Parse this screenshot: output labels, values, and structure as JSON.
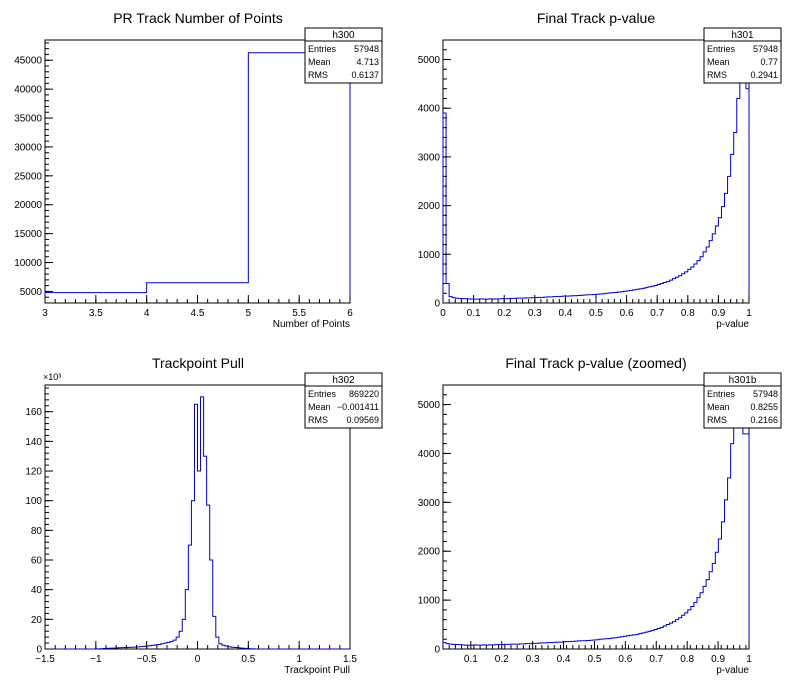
{
  "colors": {
    "line": "#0000cc",
    "axis": "#000000",
    "background": "#ffffff"
  },
  "chart_data": [
    {
      "id": "h300",
      "type": "histogram",
      "title": "PR Track Number of Points",
      "xlabel": "Number of Points",
      "ylabel": "",
      "xlim": [
        3,
        6
      ],
      "ylim": [
        3000,
        48500
      ],
      "exponent_label": "",
      "xticks": [
        "3",
        "3.5",
        "4",
        "4.5",
        "5",
        "5.5",
        "6"
      ],
      "yticks": [
        "5000",
        "10000",
        "15000",
        "20000",
        "25000",
        "30000",
        "35000",
        "40000",
        "45000"
      ],
      "bin_edges": [
        3,
        4,
        5,
        6
      ],
      "values": [
        4800,
        6500,
        46300
      ],
      "stats": {
        "name": "h300",
        "Entries": "57948",
        "Mean": "4.713",
        "RMS": "0.6137"
      }
    },
    {
      "id": "h301",
      "type": "histogram",
      "title": "Final Track p-value",
      "xlabel": "p-value",
      "ylabel": "",
      "xlim": [
        0,
        1
      ],
      "ylim": [
        0,
        5400
      ],
      "exponent_label": "",
      "xticks": [
        "0",
        "0.1",
        "0.2",
        "0.3",
        "0.4",
        "0.5",
        "0.6",
        "0.7",
        "0.8",
        "0.9",
        "1"
      ],
      "yticks": [
        "0",
        "1000",
        "2000",
        "3000",
        "4000",
        "5000"
      ],
      "bins": 100,
      "values": [
        3900,
        400,
        130,
        110,
        100,
        95,
        90,
        90,
        85,
        80,
        80,
        80,
        85,
        80,
        80,
        85,
        80,
        85,
        85,
        90,
        90,
        90,
        95,
        95,
        100,
        100,
        100,
        105,
        105,
        110,
        110,
        115,
        115,
        120,
        125,
        125,
        130,
        130,
        135,
        140,
        140,
        145,
        150,
        150,
        155,
        160,
        165,
        170,
        170,
        175,
        180,
        185,
        190,
        200,
        205,
        210,
        215,
        225,
        230,
        240,
        250,
        260,
        270,
        280,
        290,
        300,
        315,
        330,
        345,
        360,
        380,
        400,
        420,
        440,
        470,
        500,
        530,
        560,
        600,
        640,
        690,
        740,
        800,
        870,
        950,
        1050,
        1150,
        1280,
        1420,
        1580,
        1750,
        1980,
        2250,
        2600,
        3050,
        3500,
        4200,
        5000,
        5200,
        4400
      ],
      "stats": {
        "name": "h301",
        "Entries": "57948",
        "Mean": "0.77",
        "RMS": "0.2941"
      }
    },
    {
      "id": "h302",
      "type": "histogram",
      "title": "Trackpoint Pull",
      "xlabel": "Trackpoint Pull",
      "ylabel": "",
      "xlim": [
        -1.5,
        1.5
      ],
      "ylim": [
        0,
        178000
      ],
      "exponent_label": "×10³",
      "xticks": [
        "−1.5",
        "−1",
        "−0.5",
        "0",
        "0.5",
        "1",
        "1.5"
      ],
      "yticks": [
        "0",
        "20",
        "40",
        "60",
        "80",
        "100",
        "120",
        "140",
        "160"
      ],
      "bins": 100,
      "values": [
        0,
        0,
        0,
        0,
        0,
        0,
        0,
        0,
        0,
        0,
        0,
        0,
        0,
        0,
        0,
        0,
        0,
        100,
        200,
        300,
        400,
        500,
        600,
        700,
        800,
        900,
        1000,
        1100,
        1200,
        1300,
        1400,
        1600,
        1800,
        2000,
        2200,
        2500,
        2800,
        3000,
        3500,
        4000,
        4500,
        5000,
        6000,
        8000,
        12000,
        20000,
        40000,
        70000,
        100000,
        165000,
        120000,
        170000,
        130000,
        97000,
        60000,
        22000,
        8000,
        3500,
        2500,
        2000,
        1500,
        1200,
        1000,
        800,
        600,
        400,
        300,
        200,
        100,
        0,
        0,
        0,
        0,
        0,
        0,
        0,
        0,
        0,
        0,
        0,
        0,
        0,
        0,
        0,
        0,
        0,
        0,
        0,
        0,
        0,
        0,
        0,
        0,
        0,
        0,
        0,
        0,
        0,
        0,
        0
      ],
      "stats": {
        "name": "h302",
        "Entries": "869220",
        "Mean": "−0.001411",
        "RMS": "0.09569"
      }
    },
    {
      "id": "h301b",
      "type": "histogram",
      "title": "Final Track p-value (zoomed)",
      "xlabel": "p-value",
      "ylabel": "",
      "xlim": [
        0.01,
        1
      ],
      "ylim": [
        0,
        5400
      ],
      "exponent_label": "",
      "xticks": [
        "0.1",
        "0.2",
        "0.3",
        "0.4",
        "0.5",
        "0.6",
        "0.7",
        "0.8",
        "0.9",
        "1"
      ],
      "yticks": [
        "0",
        "1000",
        "2000",
        "3000",
        "4000",
        "5000"
      ],
      "bins": 100,
      "values": [
        130,
        110,
        100,
        95,
        90,
        90,
        85,
        80,
        80,
        80,
        85,
        80,
        80,
        85,
        80,
        85,
        85,
        90,
        90,
        90,
        95,
        95,
        100,
        100,
        100,
        105,
        105,
        110,
        110,
        115,
        115,
        120,
        125,
        125,
        130,
        130,
        135,
        140,
        140,
        145,
        150,
        150,
        155,
        160,
        165,
        170,
        170,
        175,
        180,
        185,
        190,
        200,
        205,
        210,
        215,
        225,
        230,
        240,
        250,
        260,
        270,
        280,
        290,
        300,
        315,
        330,
        345,
        360,
        380,
        400,
        420,
        440,
        470,
        500,
        530,
        560,
        600,
        640,
        690,
        740,
        800,
        870,
        950,
        1050,
        1150,
        1280,
        1420,
        1580,
        1750,
        1980,
        2250,
        2600,
        3050,
        3500,
        4200,
        5000,
        5200,
        5200,
        4400,
        4400
      ],
      "stats": {
        "name": "h301b",
        "Entries": "57948",
        "Mean": "0.8255",
        "RMS": "0.2166"
      }
    }
  ]
}
